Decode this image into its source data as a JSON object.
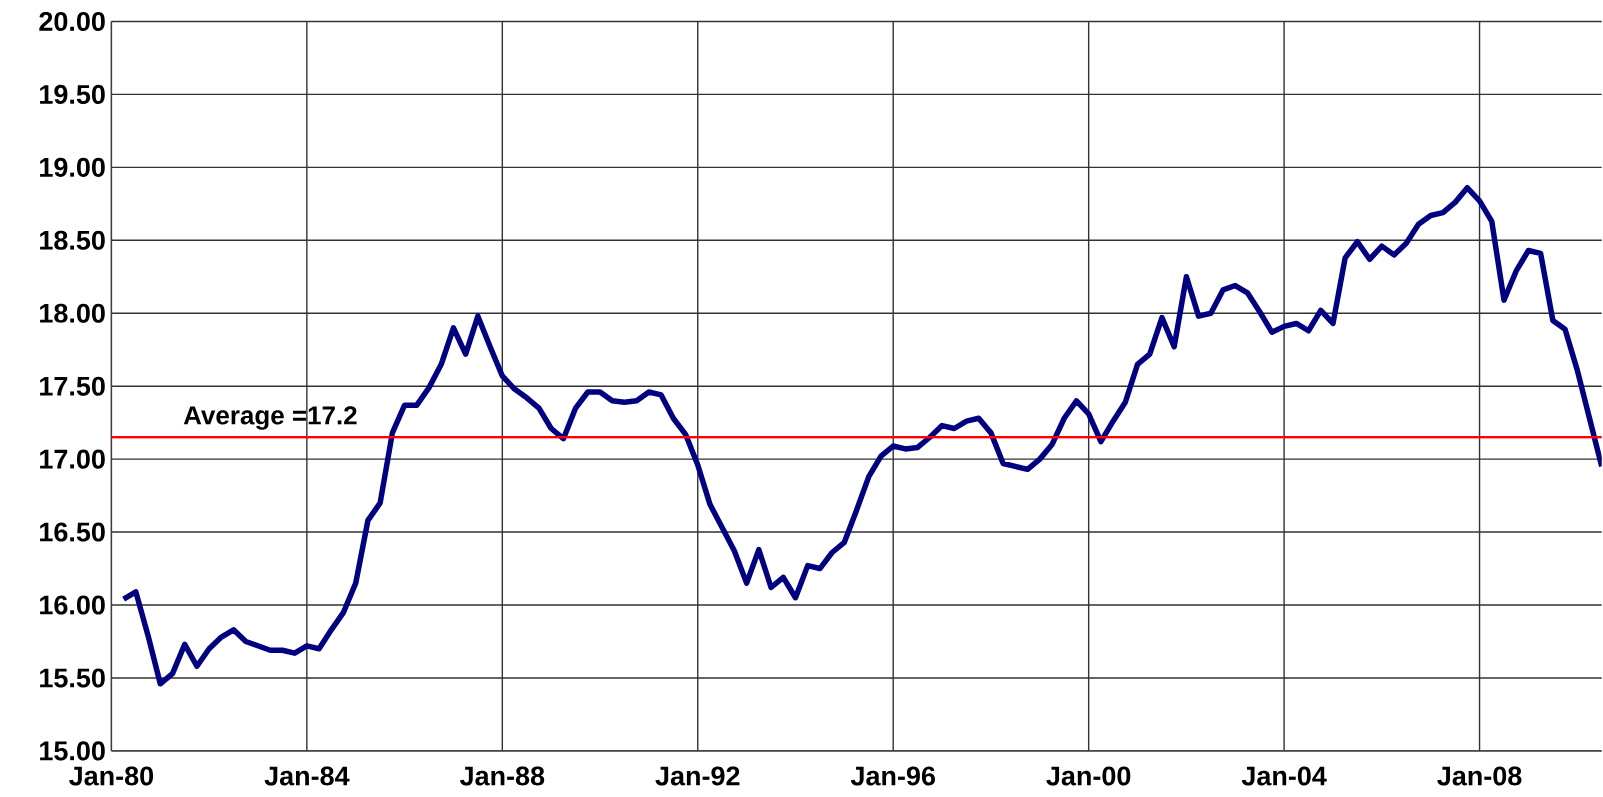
{
  "chart_data": {
    "type": "line",
    "x": [
      "1980-04",
      "1980-07",
      "1980-10",
      "1981-01",
      "1981-04",
      "1981-07",
      "1981-10",
      "1982-01",
      "1982-04",
      "1982-07",
      "1982-10",
      "1983-01",
      "1983-04",
      "1983-07",
      "1983-10",
      "1984-01",
      "1984-04",
      "1984-07",
      "1984-10",
      "1985-01",
      "1985-04",
      "1985-07",
      "1985-10",
      "1986-01",
      "1986-04",
      "1986-07",
      "1986-10",
      "1987-01",
      "1987-04",
      "1987-07",
      "1987-10",
      "1988-01",
      "1988-04",
      "1988-07",
      "1988-10",
      "1989-01",
      "1989-04",
      "1989-07",
      "1989-10",
      "1990-01",
      "1990-04",
      "1990-07",
      "1990-10",
      "1991-01",
      "1991-04",
      "1991-07",
      "1991-10",
      "1992-01",
      "1992-04",
      "1992-07",
      "1992-10",
      "1993-01",
      "1993-04",
      "1993-07",
      "1993-10",
      "1994-01",
      "1994-04",
      "1994-07",
      "1994-10",
      "1995-01",
      "1995-04",
      "1995-07",
      "1995-10",
      "1996-01",
      "1996-04",
      "1996-07",
      "1996-10",
      "1997-01",
      "1997-04",
      "1997-07",
      "1997-10",
      "1998-01",
      "1998-04",
      "1998-07",
      "1998-10",
      "1999-01",
      "1999-04",
      "1999-07",
      "1999-10",
      "2000-01",
      "2000-04",
      "2000-07",
      "2000-10",
      "2001-01",
      "2001-04",
      "2001-07",
      "2001-10",
      "2002-01",
      "2002-04",
      "2002-07",
      "2002-10",
      "2003-01",
      "2003-04",
      "2003-07",
      "2003-10",
      "2004-01",
      "2004-04",
      "2004-07",
      "2004-10",
      "2005-01",
      "2005-04",
      "2005-07",
      "2005-10",
      "2006-01",
      "2006-04",
      "2006-07",
      "2006-10",
      "2007-01",
      "2007-04",
      "2007-07",
      "2007-10",
      "2008-01",
      "2008-04",
      "2008-07",
      "2008-10",
      "2009-01",
      "2009-04",
      "2009-07",
      "2009-10",
      "2010-01",
      "2010-04",
      "2010-07"
    ],
    "series": [
      {
        "color": "#000080",
        "values": [
          16.04,
          16.09,
          15.79,
          15.46,
          15.53,
          15.73,
          15.58,
          15.7,
          15.78,
          15.83,
          15.75,
          15.72,
          15.69,
          15.69,
          15.67,
          15.72,
          15.7,
          15.83,
          15.95,
          16.15,
          16.58,
          16.7,
          17.18,
          17.37,
          17.37,
          17.49,
          17.65,
          17.9,
          17.72,
          17.98,
          17.77,
          17.57,
          17.48,
          17.42,
          17.35,
          17.21,
          17.14,
          17.35,
          17.46,
          17.46,
          17.4,
          17.39,
          17.4,
          17.46,
          17.44,
          17.28,
          17.17,
          16.96,
          16.69,
          16.53,
          16.37,
          16.15,
          16.38,
          16.12,
          16.19,
          16.05,
          16.27,
          16.25,
          16.36,
          16.43,
          16.65,
          16.88,
          17.02,
          17.09,
          17.07,
          17.08,
          17.15,
          17.23,
          17.21,
          17.26,
          17.28,
          17.18,
          16.97,
          16.95,
          16.93,
          17.0,
          17.1,
          17.28,
          17.4,
          17.31,
          17.12,
          17.26,
          17.39,
          17.65,
          17.72,
          17.97,
          17.77,
          18.25,
          17.98,
          18.0,
          18.16,
          18.19,
          18.14,
          18.01,
          17.87,
          17.91,
          17.93,
          17.88,
          18.02,
          17.93,
          18.38,
          18.49,
          18.37,
          18.46,
          18.4,
          18.48,
          18.61,
          18.67,
          18.69,
          18.76,
          18.86,
          18.77,
          18.63,
          18.09,
          18.29,
          18.43,
          18.41,
          17.95,
          17.89,
          17.61,
          17.28,
          16.95
        ]
      }
    ],
    "xlim": [
      "1980-01",
      "2010-07"
    ],
    "xticks": [
      {
        "value": "1980-01",
        "label": "Jan-80"
      },
      {
        "value": "1984-01",
        "label": "Jan-84"
      },
      {
        "value": "1988-01",
        "label": "Jan-88"
      },
      {
        "value": "1992-01",
        "label": "Jan-92"
      },
      {
        "value": "1996-01",
        "label": "Jan-96"
      },
      {
        "value": "2000-01",
        "label": "Jan-00"
      },
      {
        "value": "2004-01",
        "label": "Jan-04"
      },
      {
        "value": "2008-01",
        "label": "Jan-08"
      }
    ],
    "ylim": [
      15,
      20
    ],
    "yticks": [
      {
        "value": 15,
        "label": "15.00"
      },
      {
        "value": 15.5,
        "label": "15.50"
      },
      {
        "value": 16,
        "label": "16.00"
      },
      {
        "value": 16.5,
        "label": "16.50"
      },
      {
        "value": 17,
        "label": "17.00"
      },
      {
        "value": 17.5,
        "label": "17.50"
      },
      {
        "value": 18,
        "label": "18.00"
      },
      {
        "value": 18.5,
        "label": "18.50"
      },
      {
        "value": 19,
        "label": "19.00"
      },
      {
        "value": 19.5,
        "label": "19.50"
      },
      {
        "value": 20,
        "label": "20.00"
      }
    ],
    "ref_lines": [
      {
        "axis": "y",
        "value": 17.15,
        "label": "Average =17.2",
        "color": "#ff0000"
      }
    ],
    "grid": true,
    "marker": "none",
    "line_style": "solid"
  }
}
